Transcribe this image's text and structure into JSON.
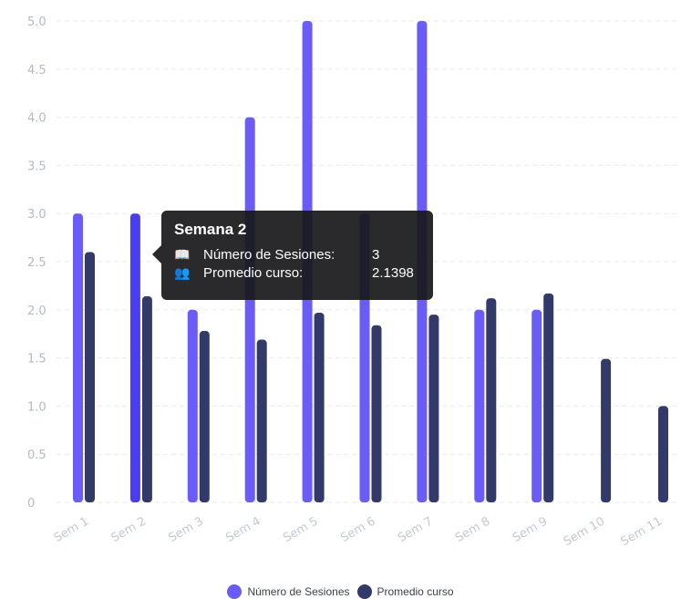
{
  "chart_data": {
    "type": "bar",
    "categories": [
      "Sem 1",
      "Sem 2",
      "Sem 3",
      "Sem 4",
      "Sem 5",
      "Sem 6",
      "Sem 7",
      "Sem 8",
      "Sem 9",
      "Sem 10",
      "Sem 11"
    ],
    "series": [
      {
        "name": "Número de Sesiones",
        "color": "#6a5cf6",
        "values": [
          3,
          3,
          2,
          4,
          5,
          3,
          5,
          2,
          2,
          null,
          null
        ]
      },
      {
        "name": "Promedio curso",
        "color": "#323a6a",
        "values": [
          2.6,
          2.1398,
          1.78,
          1.69,
          1.97,
          1.84,
          1.95,
          2.12,
          2.17,
          1.49,
          1.0
        ]
      }
    ],
    "highlight_color": "#4a3ff0",
    "highlight_index": 1,
    "ylim": [
      0,
      5
    ],
    "yticks": [
      "0",
      "0.5",
      "1.0",
      "1.5",
      "2.0",
      "2.5",
      "3.0",
      "3.5",
      "4.0",
      "4.5",
      "5.0"
    ],
    "grid": true,
    "legend_position": "bottom-center"
  },
  "tooltip": {
    "title": "Semana 2",
    "rows": [
      {
        "icon": "book-icon",
        "label": "Número de Sesiones:",
        "value": "3"
      },
      {
        "icon": "users-icon",
        "label": "Promedio curso:",
        "value": "2.1398"
      }
    ]
  },
  "legend": {
    "items": [
      {
        "label": "Número de Sesiones",
        "color": "#6a5cf6"
      },
      {
        "label": "Promedio curso",
        "color": "#323a6a"
      }
    ]
  }
}
